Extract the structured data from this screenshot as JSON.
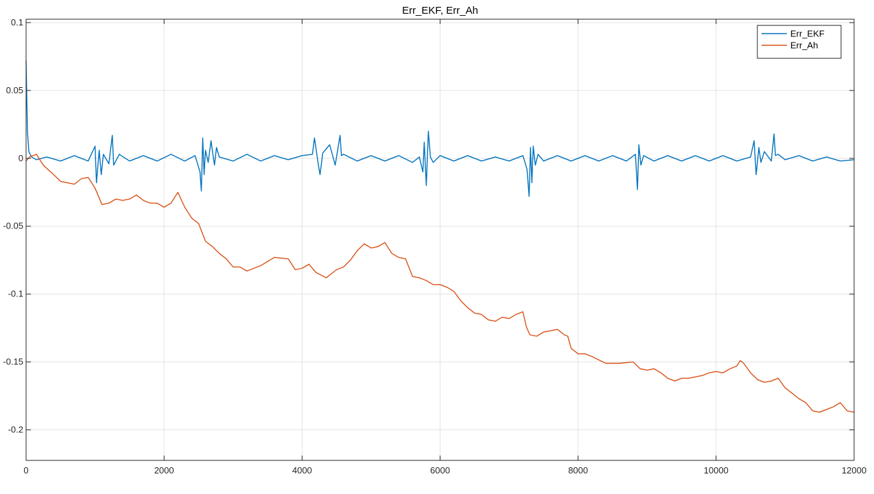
{
  "chart_data": {
    "type": "line",
    "title": "Err_EKF, Err_Ah",
    "xlabel": "",
    "ylabel": "",
    "xlim": [
      0,
      12000
    ],
    "ylim": [
      -0.2225,
      0.1025
    ],
    "xticks": [
      0,
      2000,
      4000,
      6000,
      8000,
      10000,
      12000
    ],
    "xtick_labels": [
      "0",
      "2000",
      "4000",
      "6000",
      "8000",
      "10000",
      "12000"
    ],
    "yticks": [
      0.1,
      0.05,
      0,
      -0.05,
      -0.1,
      -0.15,
      -0.2
    ],
    "ytick_labels": [
      "0.1",
      "0.05",
      "0",
      "-0.05",
      "-0.1",
      "-0.15",
      "-0.2"
    ],
    "grid": true,
    "legend_position": "top-right",
    "series": [
      {
        "name": "Err_EKF",
        "color": "#0072BD",
        "x": [
          0,
          20,
          40,
          80,
          150,
          300,
          500,
          700,
          900,
          1000,
          1020,
          1060,
          1090,
          1120,
          1200,
          1250,
          1270,
          1350,
          1500,
          1700,
          1900,
          2100,
          2300,
          2450,
          2520,
          2540,
          2560,
          2580,
          2600,
          2640,
          2680,
          2730,
          2760,
          2800,
          3000,
          3200,
          3400,
          3600,
          3800,
          4000,
          4150,
          4180,
          4230,
          4260,
          4300,
          4400,
          4480,
          4550,
          4570,
          4600,
          4800,
          5000,
          5200,
          5400,
          5600,
          5700,
          5750,
          5770,
          5800,
          5830,
          5860,
          5900,
          6000,
          6200,
          6400,
          6600,
          6800,
          7000,
          7200,
          7260,
          7290,
          7310,
          7330,
          7350,
          7380,
          7420,
          7500,
          7700,
          7900,
          8100,
          8300,
          8500,
          8700,
          8830,
          8860,
          8880,
          8910,
          8950,
          9100,
          9300,
          9500,
          9700,
          9900,
          10100,
          10300,
          10500,
          10550,
          10580,
          10620,
          10650,
          10700,
          10800,
          10840,
          10860,
          10900,
          11000,
          11200,
          11400,
          11600,
          11800,
          12000
        ],
        "y": [
          0.072,
          0.02,
          0.005,
          0.001,
          -0.001,
          0.001,
          -0.002,
          0.002,
          -0.002,
          0.009,
          -0.018,
          0.006,
          -0.012,
          0.003,
          -0.004,
          0.017,
          -0.005,
          0.003,
          -0.002,
          0.002,
          -0.002,
          0.003,
          -0.002,
          0.002,
          -0.01,
          -0.024,
          0.015,
          -0.012,
          0.006,
          -0.003,
          0.013,
          -0.005,
          0.008,
          0.001,
          -0.002,
          0.003,
          -0.002,
          0.002,
          -0.001,
          0.002,
          0.003,
          0.015,
          -0.003,
          -0.012,
          0.004,
          0.01,
          -0.005,
          0.017,
          0.002,
          0.003,
          -0.002,
          0.002,
          -0.002,
          0.002,
          -0.003,
          0.001,
          -0.01,
          0.012,
          -0.02,
          0.02,
          0.001,
          -0.003,
          0.002,
          -0.002,
          0.002,
          -0.002,
          0.001,
          -0.002,
          0.002,
          -0.008,
          -0.028,
          0.008,
          -0.018,
          0.009,
          -0.005,
          0.003,
          -0.002,
          0.002,
          -0.002,
          0.002,
          -0.002,
          0.002,
          -0.002,
          0.003,
          -0.023,
          0.01,
          -0.005,
          0.002,
          -0.002,
          0.002,
          -0.002,
          0.002,
          -0.002,
          0.002,
          -0.002,
          0.001,
          0.013,
          -0.012,
          0.008,
          -0.003,
          0.005,
          -0.002,
          0.018,
          0.002,
          0.003,
          -0.001,
          0.002,
          -0.002,
          0.001,
          -0.002,
          -0.001
        ]
      },
      {
        "name": "Err_Ah",
        "color": "#D95319",
        "x": [
          0,
          50,
          150,
          250,
          400,
          500,
          700,
          800,
          900,
          1000,
          1050,
          1100,
          1200,
          1300,
          1400,
          1500,
          1600,
          1700,
          1800,
          1900,
          2000,
          2100,
          2200,
          2300,
          2400,
          2500,
          2600,
          2700,
          2800,
          2900,
          3000,
          3100,
          3200,
          3400,
          3600,
          3800,
          3900,
          4000,
          4100,
          4200,
          4350,
          4500,
          4600,
          4700,
          4800,
          4900,
          5000,
          5100,
          5200,
          5300,
          5400,
          5500,
          5600,
          5700,
          5800,
          5900,
          6000,
          6100,
          6200,
          6300,
          6400,
          6500,
          6600,
          6700,
          6800,
          6900,
          7000,
          7100,
          7200,
          7250,
          7300,
          7400,
          7500,
          7600,
          7700,
          7800,
          7850,
          7900,
          8000,
          8100,
          8200,
          8400,
          8600,
          8800,
          8900,
          9000,
          9100,
          9200,
          9300,
          9400,
          9500,
          9600,
          9700,
          9800,
          9900,
          10000,
          10100,
          10200,
          10300,
          10350,
          10400,
          10500,
          10600,
          10700,
          10800,
          10900,
          11000,
          11100,
          11200,
          11300,
          11400,
          11500,
          11600,
          11700,
          11800,
          11900,
          12000
        ],
        "y": [
          -0.002,
          0.001,
          0.003,
          -0.005,
          -0.012,
          -0.017,
          -0.019,
          -0.015,
          -0.014,
          -0.022,
          -0.028,
          -0.034,
          -0.033,
          -0.03,
          -0.031,
          -0.03,
          -0.027,
          -0.031,
          -0.033,
          -0.033,
          -0.036,
          -0.033,
          -0.025,
          -0.036,
          -0.044,
          -0.048,
          -0.061,
          -0.065,
          -0.07,
          -0.074,
          -0.08,
          -0.08,
          -0.083,
          -0.079,
          -0.073,
          -0.074,
          -0.082,
          -0.081,
          -0.078,
          -0.084,
          -0.088,
          -0.082,
          -0.08,
          -0.075,
          -0.068,
          -0.063,
          -0.066,
          -0.065,
          -0.062,
          -0.07,
          -0.073,
          -0.074,
          -0.087,
          -0.088,
          -0.09,
          -0.093,
          -0.093,
          -0.095,
          -0.098,
          -0.105,
          -0.11,
          -0.114,
          -0.115,
          -0.119,
          -0.12,
          -0.117,
          -0.118,
          -0.115,
          -0.113,
          -0.124,
          -0.13,
          -0.131,
          -0.128,
          -0.127,
          -0.126,
          -0.13,
          -0.131,
          -0.14,
          -0.144,
          -0.144,
          -0.146,
          -0.151,
          -0.151,
          -0.15,
          -0.155,
          -0.156,
          -0.155,
          -0.158,
          -0.162,
          -0.164,
          -0.162,
          -0.162,
          -0.161,
          -0.16,
          -0.158,
          -0.157,
          -0.158,
          -0.155,
          -0.153,
          -0.149,
          -0.151,
          -0.158,
          -0.163,
          -0.165,
          -0.164,
          -0.162,
          -0.169,
          -0.173,
          -0.177,
          -0.18,
          -0.186,
          -0.187,
          -0.185,
          -0.183,
          -0.18,
          -0.186,
          -0.187
        ]
      }
    ]
  }
}
